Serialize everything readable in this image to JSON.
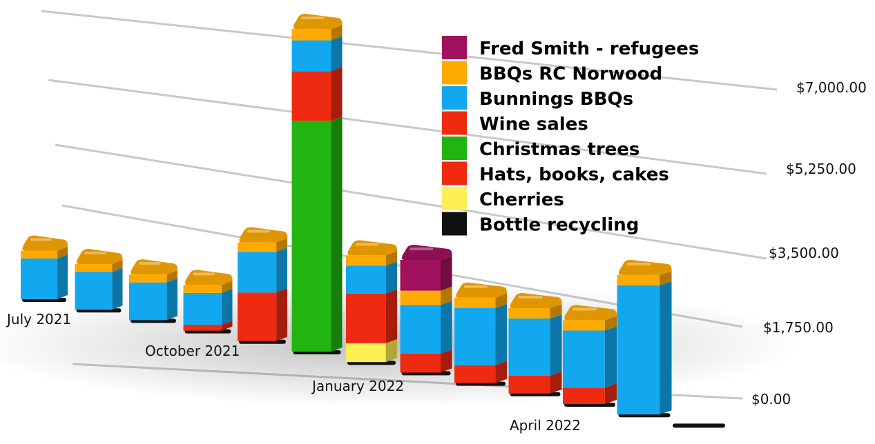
{
  "chart_data": {
    "type": "bar",
    "stacked": true,
    "style": "3d-perspective",
    "categories": [
      "July 2021",
      "",
      "",
      "October 2021",
      "",
      "",
      "January 2022",
      "",
      "",
      "",
      "April 2022",
      "",
      ""
    ],
    "x_tick_labels": [
      "July 2021",
      "October 2021",
      "January 2022",
      "April 2022"
    ],
    "y_tick_labels": [
      "$0.00",
      "$1,750.00",
      "$3,500.00",
      "$5,250.00",
      "$7,000.00"
    ],
    "ylim": [
      0,
      8750
    ],
    "grid": true,
    "legend_position": "top-right",
    "series": [
      {
        "name": "Bottle recycling",
        "color": "#111111",
        "values": [
          60,
          60,
          60,
          60,
          60,
          60,
          60,
          60,
          60,
          60,
          60,
          60,
          60
        ]
      },
      {
        "name": "Cherries",
        "color": "#ffee55",
        "values": [
          0,
          0,
          0,
          0,
          0,
          0,
          380,
          0,
          0,
          0,
          0,
          0,
          0
        ]
      },
      {
        "name": "Hats, books, cakes",
        "color": "#ee2a10",
        "values": [
          0,
          0,
          0,
          120,
          980,
          0,
          1000,
          380,
          360,
          360,
          330,
          0,
          0
        ]
      },
      {
        "name": "Christmas trees",
        "color": "#22b410",
        "values": [
          0,
          0,
          0,
          0,
          0,
          4650,
          0,
          0,
          0,
          0,
          0,
          0,
          0
        ]
      },
      {
        "name": "Wine sales",
        "color": "#ee2a10",
        "values": [
          0,
          0,
          0,
          0,
          0,
          1000,
          0,
          0,
          0,
          0,
          0,
          0,
          0
        ]
      },
      {
        "name": "Bunnings BBQs",
        "color": "#11a8f0",
        "values": [
          820,
          760,
          760,
          640,
          820,
          620,
          560,
          980,
          1150,
          1150,
          1150,
          2600,
          0
        ]
      },
      {
        "name": "BBQs RC Norwood",
        "color": "#ffaa00",
        "values": [
          160,
          160,
          160,
          160,
          190,
          230,
          210,
          290,
          210,
          210,
          210,
          210,
          0
        ]
      },
      {
        "name": "Fred Smith - refugees",
        "color": "#a0125e",
        "values": [
          0,
          0,
          0,
          0,
          0,
          0,
          0,
          620,
          0,
          0,
          0,
          0,
          0
        ]
      }
    ]
  },
  "legend": {
    "items": [
      {
        "label": "Fred Smith - refugees",
        "color": "#a0125e"
      },
      {
        "label": "BBQs RC Norwood",
        "color": "#ffaa00"
      },
      {
        "label": "Bunnings BBQs",
        "color": "#11a8f0"
      },
      {
        "label": "Wine sales",
        "color": "#ee2a10"
      },
      {
        "label": "Christmas trees",
        "color": "#22b410"
      },
      {
        "label": "Hats, books, cakes",
        "color": "#ee2a10"
      },
      {
        "label": "Cherries",
        "color": "#ffee55"
      },
      {
        "label": "Bottle recycling",
        "color": "#111111"
      }
    ]
  }
}
